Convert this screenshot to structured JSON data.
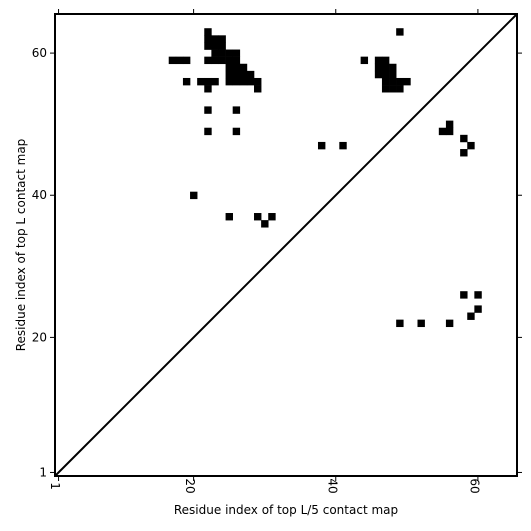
{
  "chart_data": {
    "type": "heatmap",
    "title": "",
    "xlabel": "Residue index of top L/5 contact map",
    "ylabel": "Residue index of top L contact map",
    "xlim": [
      0.5,
      65.5
    ],
    "ylim": [
      0.5,
      65.5
    ],
    "x_ticks": [
      1,
      20,
      40,
      60
    ],
    "y_ticks": [
      1,
      20,
      40,
      60
    ],
    "diagonal": true,
    "colors": {
      "cell": "#000000",
      "background": "#ffffff",
      "axes": "#000000"
    },
    "cells": [
      [
        17,
        59
      ],
      [
        18,
        59
      ],
      [
        19,
        59
      ],
      [
        22,
        63
      ],
      [
        22,
        62
      ],
      [
        22,
        61
      ],
      [
        22,
        59
      ],
      [
        23,
        62
      ],
      [
        23,
        61
      ],
      [
        23,
        60
      ],
      [
        23,
        59
      ],
      [
        24,
        62
      ],
      [
        24,
        61
      ],
      [
        24,
        60
      ],
      [
        24,
        59
      ],
      [
        25,
        60
      ],
      [
        25,
        59
      ],
      [
        25,
        58
      ],
      [
        25,
        57
      ],
      [
        25,
        56
      ],
      [
        26,
        60
      ],
      [
        26,
        59
      ],
      [
        26,
        58
      ],
      [
        26,
        57
      ],
      [
        26,
        56
      ],
      [
        27,
        58
      ],
      [
        27,
        57
      ],
      [
        27,
        56
      ],
      [
        28,
        57
      ],
      [
        28,
        56
      ],
      [
        29,
        56
      ],
      [
        29,
        55
      ],
      [
        19,
        56
      ],
      [
        21,
        56
      ],
      [
        22,
        56
      ],
      [
        23,
        56
      ],
      [
        22,
        55
      ],
      [
        22,
        52
      ],
      [
        26,
        52
      ],
      [
        22,
        49
      ],
      [
        26,
        49
      ],
      [
        20,
        40
      ],
      [
        25,
        37
      ],
      [
        29,
        37
      ],
      [
        31,
        37
      ],
      [
        30,
        36
      ],
      [
        38,
        47
      ],
      [
        41,
        47
      ],
      [
        44,
        59
      ],
      [
        49,
        63
      ],
      [
        46,
        59
      ],
      [
        47,
        59
      ],
      [
        46,
        58
      ],
      [
        47,
        58
      ],
      [
        48,
        58
      ],
      [
        46,
        57
      ],
      [
        47,
        57
      ],
      [
        48,
        57
      ],
      [
        47,
        56
      ],
      [
        48,
        56
      ],
      [
        49,
        56
      ],
      [
        50,
        56
      ],
      [
        47,
        55
      ],
      [
        48,
        55
      ],
      [
        49,
        55
      ],
      [
        55,
        49
      ],
      [
        56,
        49
      ],
      [
        56,
        50
      ],
      [
        58,
        48
      ],
      [
        59,
        47
      ],
      [
        58,
        46
      ],
      [
        58,
        26
      ],
      [
        60,
        26
      ],
      [
        60,
        24
      ],
      [
        59,
        23
      ],
      [
        49,
        22
      ],
      [
        52,
        22
      ],
      [
        56,
        22
      ]
    ]
  }
}
